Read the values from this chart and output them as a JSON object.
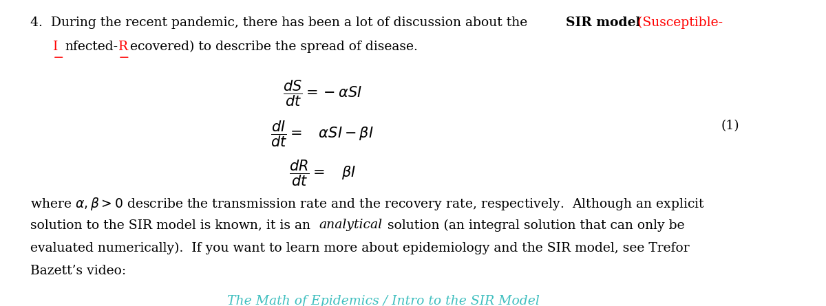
{
  "bg_color": "#ffffff",
  "text_color": "#000000",
  "red_color": "#ff0000",
  "teal_color": "#3fbfbf",
  "figsize": [
    12.0,
    4.45
  ],
  "dpi": 100,
  "eq_label": "(1)",
  "link_text": "The Math of Epidemics / Intro to the SIR Model",
  "link_color": "#3fbfbf",
  "para4": "Bazett’s video:"
}
